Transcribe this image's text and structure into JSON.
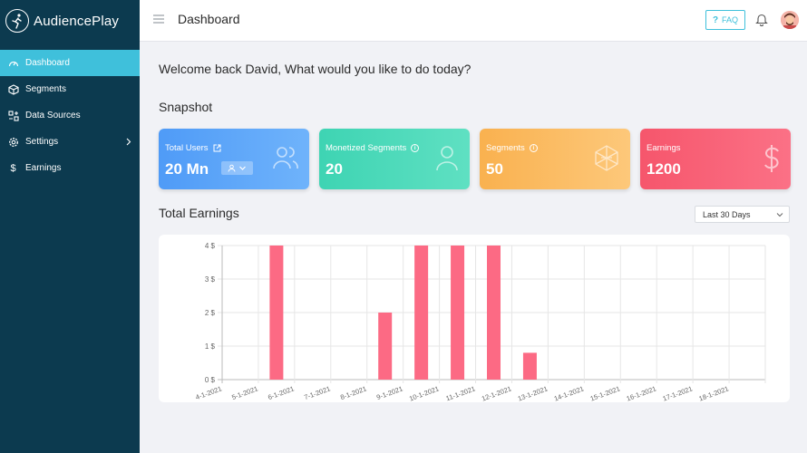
{
  "app": {
    "name": "AudiencePlay"
  },
  "sidebar": {
    "items": [
      {
        "label": "Dashboard",
        "icon": "gauge-icon",
        "active": true
      },
      {
        "label": "Segments",
        "icon": "cube-icon",
        "active": false
      },
      {
        "label": "Data Sources",
        "icon": "data-sources-icon",
        "active": false
      },
      {
        "label": "Settings",
        "icon": "gear-icon",
        "active": false,
        "has_children": true
      },
      {
        "label": "Earnings",
        "icon": "dollar-icon",
        "active": false
      }
    ]
  },
  "header": {
    "title": "Dashboard",
    "faq_label": "FAQ",
    "faq_prefix": "?"
  },
  "main": {
    "welcome": "Welcome back David, What would you like to do today?",
    "snapshot_title": "Snapshot",
    "cards": [
      {
        "label": "Total Users",
        "value": "20 Mn",
        "icon": "users-icon",
        "color": "#4f9bf7"
      },
      {
        "label": "Monetized Segments",
        "value": "20",
        "icon": "user-icon",
        "color": "#3ed4b3"
      },
      {
        "label": "Segments",
        "value": "50",
        "icon": "network-cube-icon",
        "color": "#f9b14f"
      },
      {
        "label": "Earnings",
        "value": "1200",
        "icon": "dollar-sign-icon",
        "color": "#f6566c"
      }
    ],
    "info_glyph": "i",
    "earnings_title": "Total Earnings",
    "range_selected": "Last 30 Days"
  },
  "chart_data": {
    "type": "bar",
    "categories": [
      "4-1-2021",
      "5-1-2021",
      "6-1-2021",
      "7-1-2021",
      "8-1-2021",
      "9-1-2021",
      "10-1-2021",
      "11-1-2021",
      "12-1-2021",
      "13-1-2021",
      "14-1-2021",
      "15-1-2021",
      "16-1-2021",
      "17-1-2021",
      "18-1-2021"
    ],
    "values": [
      0,
      4,
      0,
      0,
      2,
      4,
      4,
      4,
      0.8,
      0,
      0,
      0,
      0,
      0,
      0
    ],
    "yticks": [
      "0 $",
      "1 $",
      "2 $",
      "3 $",
      "4 $"
    ],
    "ylim": [
      0,
      4
    ],
    "bar_color": "#fc6a84",
    "grid": true
  }
}
